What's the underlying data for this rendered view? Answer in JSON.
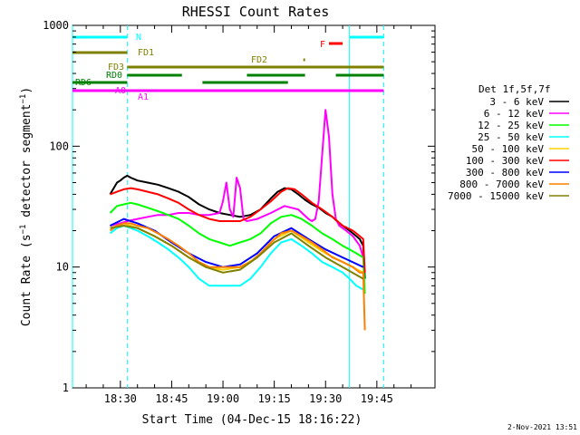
{
  "chart_data": {
    "type": "line",
    "title": "RHESSI Count Rates",
    "xlabel": "Start Time (04-Dec-15 18:16:22)",
    "ylabel": "Count Rate (s⁻¹ detector segment⁻¹)",
    "yscale": "log",
    "ylim": [
      1,
      1000
    ],
    "xlim_minutes": [
      16,
      70
    ],
    "x_ticks": [
      {
        "label": "18:30",
        "min": 30
      },
      {
        "label": "18:45",
        "min": 45
      },
      {
        "label": "19:00",
        "min": 60
      },
      {
        "label": "19:15",
        "min": 75
      },
      {
        "label": "19:30",
        "min": 90
      },
      {
        "label": "19:45",
        "min": 105
      }
    ],
    "y_ticks": [
      {
        "label": "1",
        "value": 1
      },
      {
        "label": "10",
        "value": 10
      },
      {
        "label": "100",
        "value": 100
      },
      {
        "label": "1000",
        "value": 1000
      }
    ],
    "legend_title": "Det 1f,5f,7f",
    "legend_placement": "right",
    "series": [
      {
        "name": "3 - 6 keV",
        "color": "#000000",
        "x": [
          27,
          29,
          30,
          31,
          32,
          33,
          35,
          38,
          41,
          44,
          47,
          50,
          53,
          56,
          59,
          62,
          65,
          68,
          71,
          74,
          76,
          78,
          80,
          82,
          84,
          86,
          88,
          90,
          92,
          94,
          96,
          97,
          98,
          99,
          100,
          101,
          101.5
        ],
        "y": [
          40,
          50,
          52,
          55,
          57,
          55,
          52,
          50,
          48,
          45,
          42,
          38,
          33,
          30,
          28,
          27,
          26,
          27,
          30,
          37,
          42,
          45,
          44,
          40,
          36,
          33,
          31,
          28,
          26,
          23,
          21,
          20,
          19,
          18,
          17,
          15,
          8
        ]
      },
      {
        "name": "6 - 12 keV",
        "color": "#ff00ff",
        "x": [
          27,
          30,
          32,
          35,
          38,
          41,
          44,
          47,
          50,
          53,
          56,
          59,
          60,
          61,
          62,
          63,
          64,
          65,
          66,
          67,
          70,
          74,
          78,
          82,
          85,
          86,
          87,
          88,
          89,
          90,
          91,
          92,
          93,
          94,
          96,
          98,
          100,
          101
        ],
        "y": [
          22,
          23,
          24,
          25,
          26,
          27,
          27,
          28,
          28,
          27,
          27,
          28,
          35,
          50,
          30,
          26,
          55,
          45,
          25,
          24,
          25,
          28,
          32,
          30,
          25,
          24,
          25,
          35,
          85,
          200,
          120,
          40,
          25,
          22,
          20,
          18,
          15,
          12
        ]
      },
      {
        "name": "12 - 25 keV",
        "color": "#00ff00",
        "x": [
          27,
          29,
          31,
          33,
          35,
          38,
          41,
          44,
          47,
          50,
          53,
          56,
          59,
          62,
          65,
          68,
          71,
          74,
          77,
          80,
          83,
          86,
          89,
          92,
          95,
          97,
          99,
          101,
          101.5
        ],
        "y": [
          28,
          32,
          33,
          34,
          33,
          31,
          29,
          27,
          25,
          22,
          19,
          17,
          16,
          15,
          16,
          17,
          19,
          23,
          26,
          27,
          25,
          22,
          19,
          17,
          15,
          14,
          13,
          12,
          6
        ]
      },
      {
        "name": "25 - 50 keV",
        "color": "#00ffff",
        "x": [
          27,
          29,
          31,
          33,
          35,
          38,
          41,
          44,
          47,
          50,
          53,
          56,
          59,
          62,
          65,
          68,
          71,
          74,
          77,
          80,
          83,
          86,
          89,
          92,
          95,
          97,
          99,
          101
        ],
        "y": [
          19,
          21,
          22,
          21,
          20,
          18,
          16,
          14,
          12,
          10,
          8,
          7,
          7,
          7,
          7,
          8,
          10,
          13,
          16,
          17,
          15,
          13,
          11,
          10,
          9,
          8,
          7,
          6.5
        ]
      },
      {
        "name": "50 - 100 keV",
        "color": "#ffd000",
        "x": [
          27,
          31,
          35,
          40,
          45,
          50,
          55,
          60,
          65,
          70,
          75,
          80,
          85,
          90,
          95,
          101
        ],
        "y": [
          21,
          23,
          21,
          18,
          15,
          12,
          10,
          9.5,
          10,
          12,
          17,
          20,
          16,
          13,
          11,
          9
        ]
      },
      {
        "name": "100 - 300 keV",
        "color": "#ff0000",
        "x": [
          27,
          29,
          31,
          33,
          35,
          38,
          41,
          44,
          47,
          50,
          53,
          56,
          59,
          62,
          65,
          68,
          71,
          74,
          77,
          79,
          81,
          83,
          86,
          89,
          92,
          95,
          98,
          100,
          101,
          101.5
        ],
        "y": [
          40,
          42,
          44,
          45,
          44,
          42,
          40,
          37,
          34,
          30,
          27,
          25,
          24,
          24,
          24,
          26,
          30,
          35,
          42,
          45,
          44,
          40,
          34,
          30,
          26,
          22,
          20,
          18,
          17,
          9
        ]
      },
      {
        "name": "300 - 800 keV",
        "color": "#0000ff",
        "x": [
          27,
          31,
          35,
          40,
          45,
          50,
          55,
          60,
          65,
          70,
          75,
          80,
          85,
          90,
          95,
          101
        ],
        "y": [
          22,
          25,
          23,
          20,
          16,
          13,
          11,
          10,
          10.5,
          13,
          18,
          21,
          17,
          14,
          12,
          10
        ]
      },
      {
        "name": "800 - 7000 keV",
        "color": "#ff8000",
        "x": [
          27,
          29,
          31,
          33,
          35,
          38,
          41,
          44,
          47,
          50,
          53,
          56,
          59,
          62,
          65,
          68,
          71,
          74,
          77,
          80,
          83,
          86,
          89,
          92,
          95,
          98,
          100,
          101,
          101.5
        ],
        "y": [
          20,
          22,
          23,
          23,
          22,
          21,
          19,
          17,
          15,
          13,
          11,
          10,
          10,
          10,
          10,
          11,
          13,
          16,
          19,
          20,
          18,
          16,
          14,
          12,
          11,
          10,
          9,
          9,
          3
        ]
      },
      {
        "name": "7000 - 15000 keV",
        "color": "#808000",
        "x": [
          27,
          31,
          35,
          40,
          45,
          50,
          55,
          60,
          65,
          70,
          75,
          80,
          85,
          90,
          95,
          101
        ],
        "y": [
          21,
          22,
          21,
          18,
          15,
          12,
          10,
          9,
          9.5,
          12,
          16,
          19,
          15,
          12,
          10,
          8
        ]
      }
    ],
    "flag_bars": [
      {
        "label": "N",
        "color": "#00ffff",
        "segments": [
          [
            16,
            32
          ],
          [
            97,
            107
          ]
        ]
      },
      {
        "label": "F",
        "color": "#ff0000",
        "segments": [
          [
            91,
            95
          ]
        ]
      },
      {
        "label": "FD1",
        "color": "#808000",
        "segments": [
          [
            16,
            32
          ]
        ]
      },
      {
        "label": "FD2",
        "color": "#808000",
        "segments": [
          [
            83.5,
            84
          ]
        ]
      },
      {
        "label": "FD3",
        "color": "#808000",
        "segments": [
          [
            32,
            107
          ]
        ]
      },
      {
        "label": "RD0",
        "color": "#008000",
        "segments": [
          [
            32,
            48
          ],
          [
            67,
            84
          ],
          [
            93,
            107
          ]
        ]
      },
      {
        "label": "RD6",
        "color": "#008000",
        "segments": [
          [
            16,
            32
          ],
          [
            54,
            79
          ]
        ]
      },
      {
        "label": "A0",
        "color": "#ff00ff",
        "segments": [
          [
            16,
            32
          ]
        ]
      },
      {
        "label": "A1",
        "color": "#ff00ff",
        "segments": [
          [
            32,
            107
          ]
        ]
      }
    ],
    "vlines": [
      {
        "min": 16,
        "color": "#00ffff",
        "style": "solid"
      },
      {
        "min": 32,
        "color": "#00ffff",
        "style": "dashed"
      },
      {
        "min": 97,
        "color": "#00ffff",
        "style": "solid"
      },
      {
        "min": 107,
        "color": "#00ffff",
        "style": "dashed"
      }
    ]
  },
  "footer": {
    "timestamp": "2-Nov-2021 13:51"
  }
}
